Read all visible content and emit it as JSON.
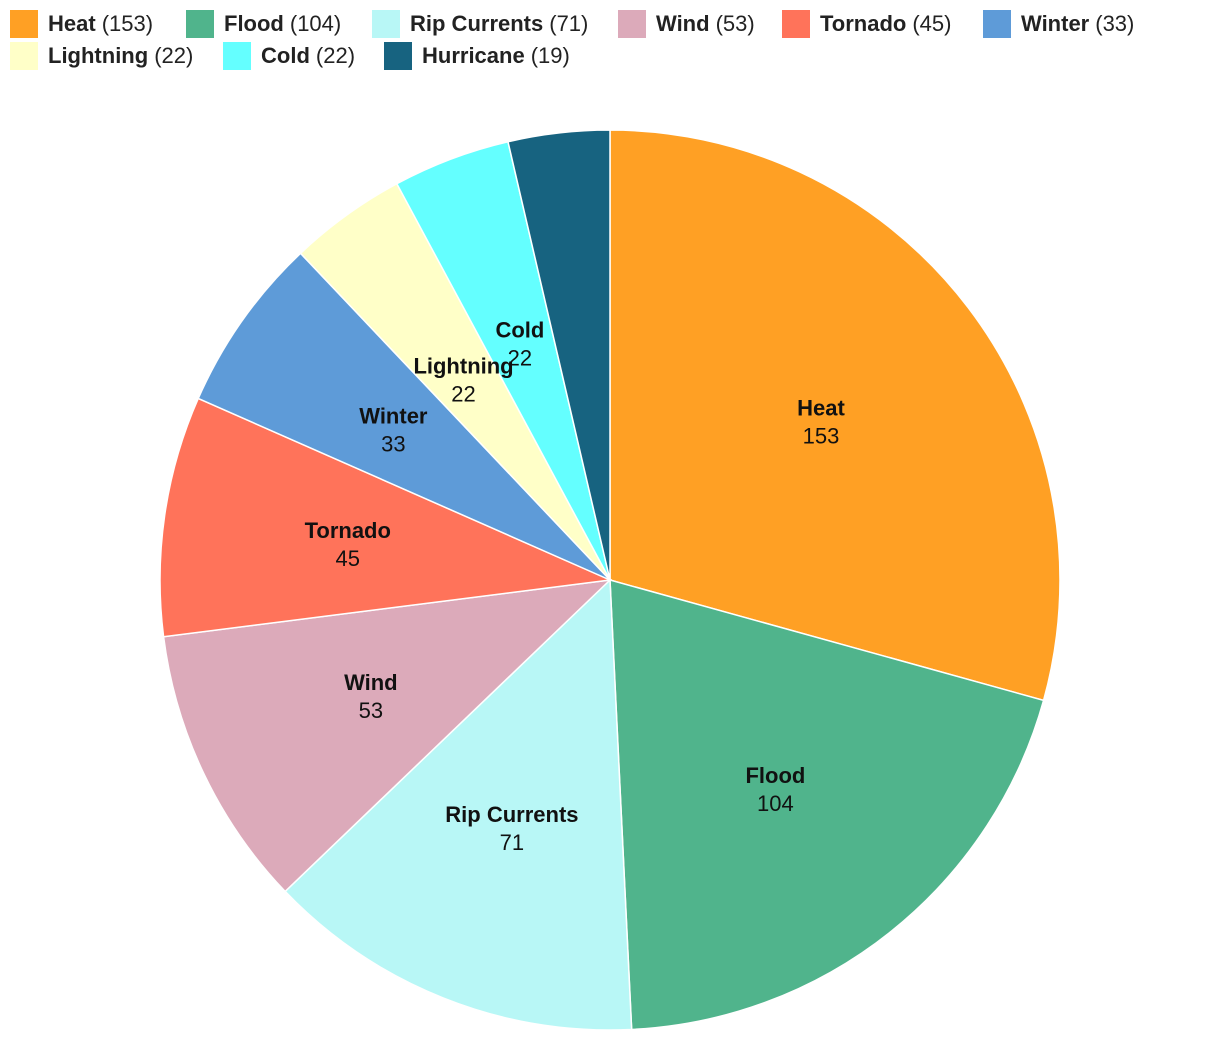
{
  "chart_data": {
    "type": "pie",
    "title": "",
    "categories": [
      "Heat",
      "Flood",
      "Rip Currents",
      "Wind",
      "Tornado",
      "Winter",
      "Lightning",
      "Cold",
      "Hurricane"
    ],
    "values": [
      153,
      104,
      71,
      53,
      45,
      33,
      22,
      22,
      19
    ],
    "colors": [
      "#ffa024",
      "#50b48c",
      "#b8f7f6",
      "#dcaaba",
      "#ff735a",
      "#5e9bd8",
      "#ffffc8",
      "#64ffff",
      "#176380"
    ],
    "legend": {
      "placement": "top-left",
      "entries": [
        {
          "name": "Heat",
          "count": "(153)"
        },
        {
          "name": "Flood",
          "count": "(104)"
        },
        {
          "name": "Rip Currents",
          "count": "(71)"
        },
        {
          "name": "Wind",
          "count": "(53)"
        },
        {
          "name": "Tornado",
          "count": "(45)"
        },
        {
          "name": "Winter",
          "count": "(33)"
        },
        {
          "name": "Lightning",
          "count": "(22)"
        },
        {
          "name": "Cold",
          "count": "(22)"
        },
        {
          "name": "Hurricane",
          "count": "(19)"
        }
      ]
    },
    "data_labels": [
      {
        "name": "Heat",
        "value": "153"
      },
      {
        "name": "Flood",
        "value": "104"
      },
      {
        "name": "Rip Currents",
        "value": "71"
      },
      {
        "name": "Wind",
        "value": "53"
      },
      {
        "name": "Tornado",
        "value": "45"
      },
      {
        "name": "Winter",
        "value": "33"
      },
      {
        "name": "Lightning",
        "value": "22"
      },
      {
        "name": "Cold",
        "value": "22"
      },
      {
        "name": "Hurricane",
        "value": ""
      }
    ]
  }
}
